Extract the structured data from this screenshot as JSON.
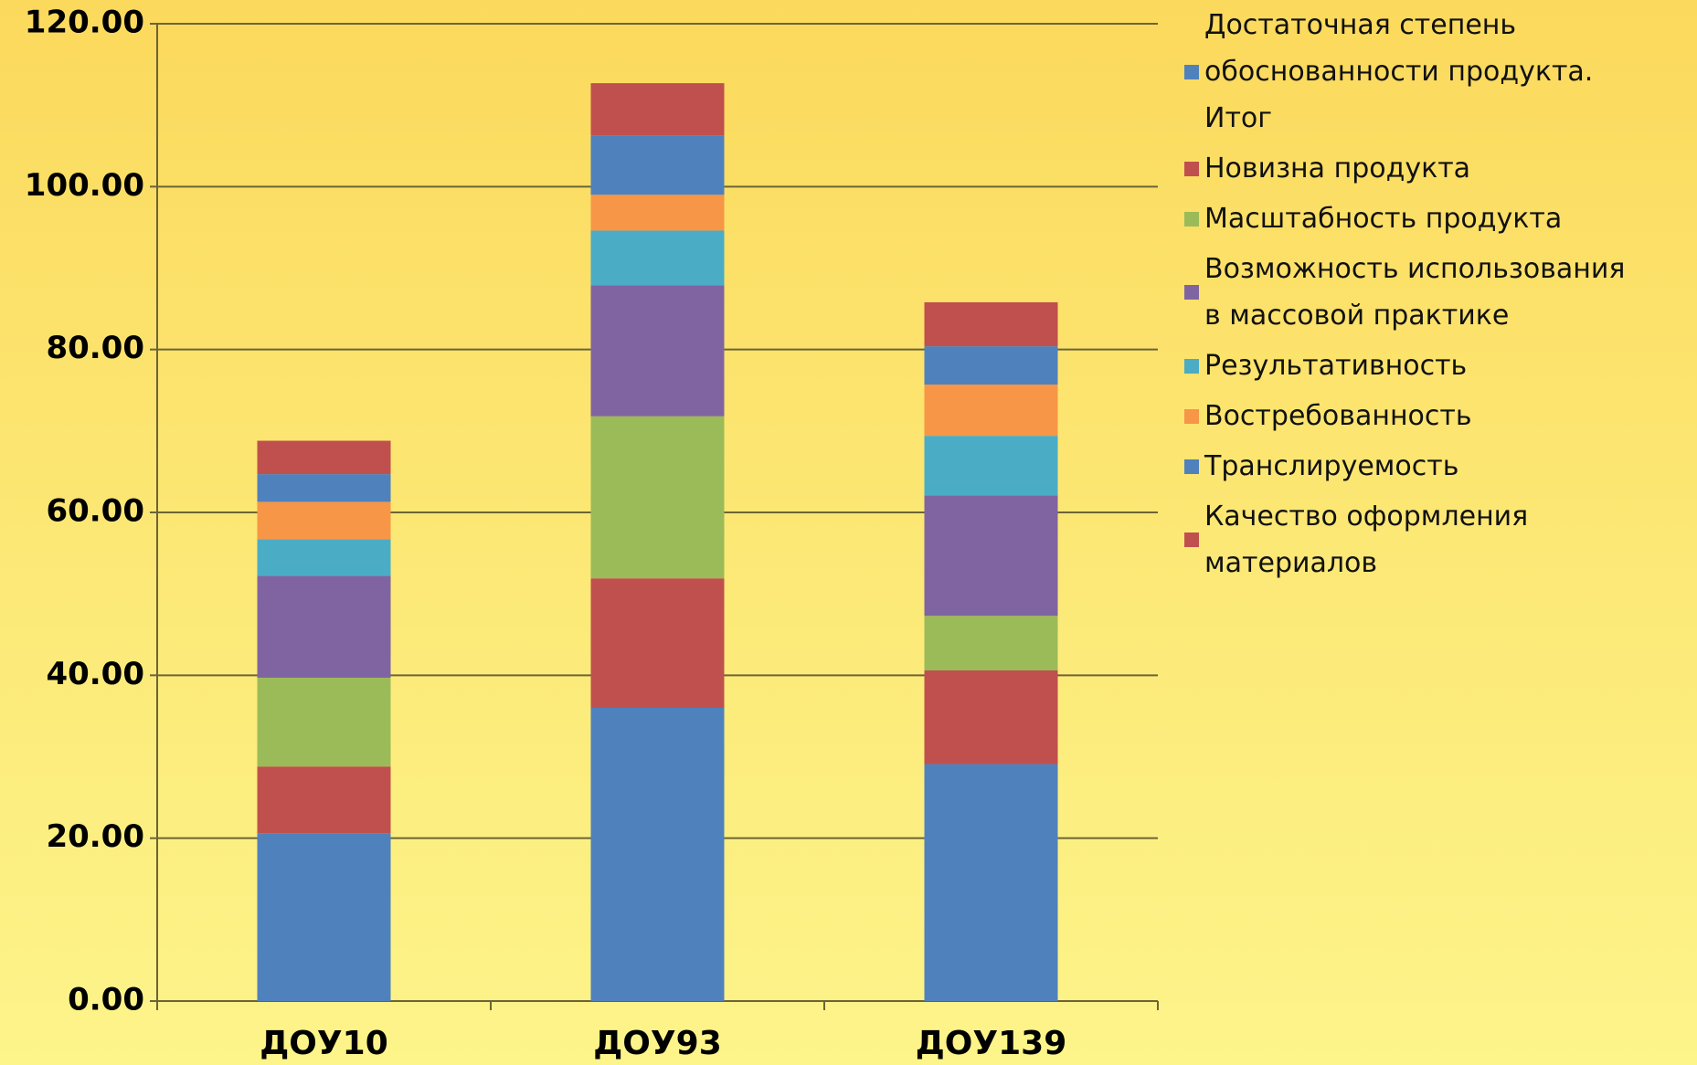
{
  "chart_data": {
    "type": "stacked-bar",
    "categories": [
      "ДОУ10",
      "ДОУ93",
      "ДОУ139"
    ],
    "series": [
      {
        "name": "Достаточная степень\nобоснованности продукта.\nИтог",
        "color": "#4f81bd",
        "values": [
          20.6,
          36.0,
          29.1
        ]
      },
      {
        "name": "Новизна продукта",
        "color": "#c0504d",
        "values": [
          8.2,
          15.9,
          11.5
        ]
      },
      {
        "name": "Масштабность продукта",
        "color": "#9bbb59",
        "values": [
          10.9,
          19.9,
          6.7
        ]
      },
      {
        "name": "Возможность использования\nв массовой практике",
        "color": "#8064a2",
        "values": [
          12.5,
          16.1,
          14.8
        ]
      },
      {
        "name": "Результативность",
        "color": "#4bacc6",
        "values": [
          4.5,
          6.7,
          7.3
        ]
      },
      {
        "name": "Востребованность",
        "color": "#f79646",
        "values": [
          4.6,
          4.4,
          6.3
        ]
      },
      {
        "name": "Транслируемость",
        "color": "#4f81bd",
        "values": [
          3.4,
          7.3,
          4.7
        ]
      },
      {
        "name": "Качество оформления\nматериалов",
        "color": "#c0504d",
        "values": [
          4.1,
          6.4,
          5.4
        ]
      }
    ],
    "ylim": [
      0,
      120
    ],
    "yticks": [
      {
        "value": 0,
        "label": "0.00"
      },
      {
        "value": 20,
        "label": "20.00"
      },
      {
        "value": 40,
        "label": "40.00"
      },
      {
        "value": 60,
        "label": "60.00"
      },
      {
        "value": 80,
        "label": "80.00"
      },
      {
        "value": 100,
        "label": "100.00"
      },
      {
        "value": 120,
        "label": "120.00"
      }
    ],
    "grid": true,
    "legend": "right"
  }
}
